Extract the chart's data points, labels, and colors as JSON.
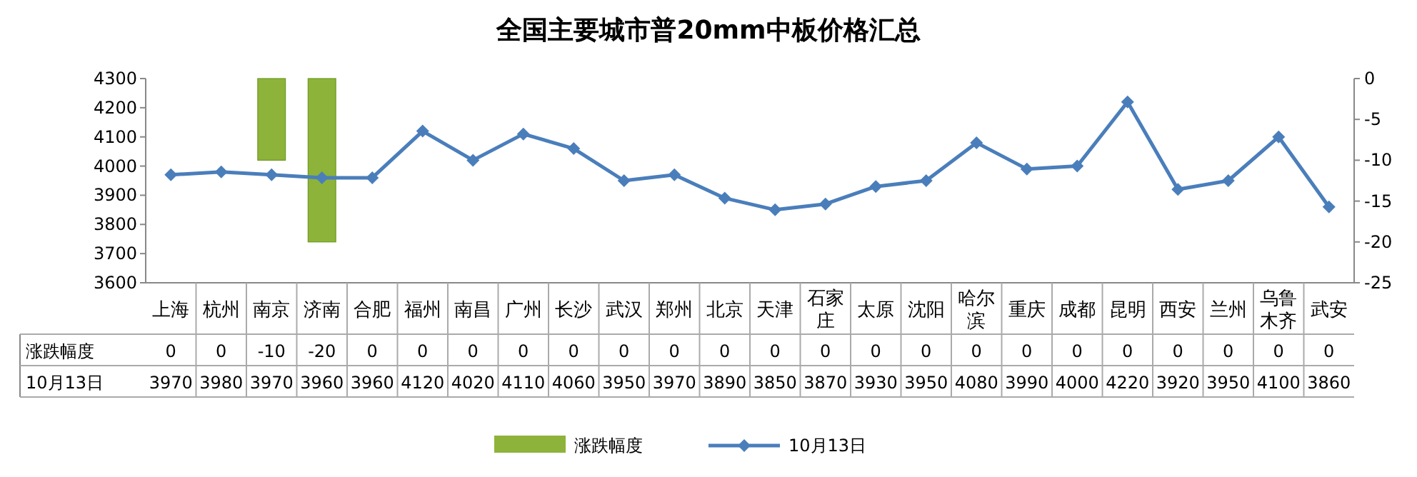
{
  "chart_data": {
    "type": "line",
    "title": "全国主要城市普20mm中板价格汇总",
    "categories": [
      "上海",
      "杭州",
      "南京",
      "济南",
      "合肥",
      "福州",
      "南昌",
      "广州",
      "长沙",
      "武汉",
      "郑州",
      "北京",
      "天津",
      "石家庄",
      "太原",
      "沈阳",
      "哈尔滨",
      "重庆",
      "成都",
      "昆明",
      "西安",
      "兰州",
      "乌鲁木齐",
      "武安"
    ],
    "series": [
      {
        "name": "涨跌幅度",
        "type": "bar",
        "axis": "y2",
        "color": "#8db33a",
        "values": [
          0,
          0,
          -10,
          -20,
          0,
          0,
          0,
          0,
          0,
          0,
          0,
          0,
          0,
          0,
          0,
          0,
          0,
          0,
          0,
          0,
          0,
          0,
          0,
          0
        ]
      },
      {
        "name": "10月13日",
        "color": "#4a7ebb",
        "values": [
          3970,
          3980,
          3970,
          3960,
          3960,
          4120,
          4020,
          4110,
          4060,
          3950,
          3970,
          3890,
          3850,
          3870,
          3930,
          3950,
          4080,
          3990,
          4000,
          4220,
          3920,
          3950,
          4100,
          3860
        ]
      }
    ],
    "marker": "diamond",
    "line_style": "solid",
    "ylim": [
      3600,
      4300
    ],
    "yticks": [
      3600,
      3700,
      3800,
      3900,
      4000,
      4100,
      4200,
      4300
    ],
    "y2lim": [
      -25,
      0
    ],
    "y2ticks": [
      -25,
      -20,
      -15,
      -10,
      -5,
      0
    ],
    "data_labels": true,
    "legend": "bottom"
  }
}
